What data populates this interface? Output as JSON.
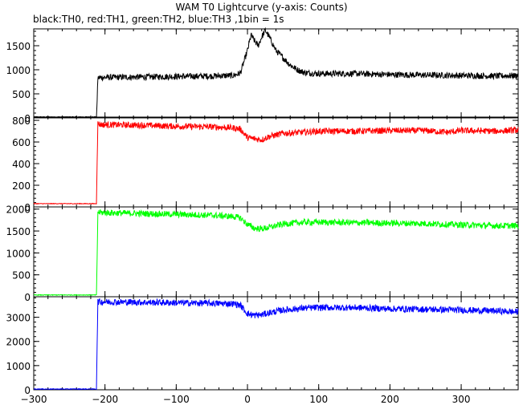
{
  "chart_data": {
    "type": "line",
    "title": "WAM T0 Lightcurve (y-axis: Counts)",
    "subtitle": "black:TH0, red:TH1, green:TH2, blue:TH3 ,1bin = 1s",
    "xlim": [
      -300,
      380
    ],
    "x_ticks": [
      -300,
      -200,
      -100,
      0,
      100,
      200,
      300
    ],
    "grid": false,
    "panels": [
      {
        "name": "TH0",
        "color": "#000000",
        "ylim": [
          0,
          1850
        ],
        "y_ticks": [
          0,
          500,
          1000,
          1500
        ],
        "series": {
          "x": [
            -300,
            -212,
            -211,
            -210,
            -205,
            -150,
            -100,
            -50,
            -20,
            -10,
            0,
            5,
            10,
            15,
            20,
            25,
            30,
            35,
            40,
            50,
            60,
            70,
            80,
            100,
            150,
            200,
            250,
            300,
            350,
            380
          ],
          "y": [
            20,
            20,
            350,
            830,
            840,
            850,
            860,
            870,
            880,
            930,
            1400,
            1720,
            1600,
            1500,
            1680,
            1820,
            1700,
            1550,
            1400,
            1250,
            1100,
            1000,
            940,
            920,
            920,
            900,
            890,
            880,
            870,
            880
          ]
        }
      },
      {
        "name": "TH1",
        "color": "#ff0000",
        "ylim": [
          0,
          830
        ],
        "y_ticks": [
          0,
          200,
          400,
          600,
          800
        ],
        "series": {
          "x": [
            -300,
            -212,
            -211,
            -210,
            -205,
            -150,
            -100,
            -50,
            -20,
            -10,
            0,
            10,
            20,
            30,
            50,
            80,
            100,
            150,
            200,
            250,
            280,
            300,
            350,
            380
          ],
          "y": [
            30,
            30,
            420,
            770,
            760,
            755,
            745,
            740,
            730,
            720,
            640,
            630,
            620,
            650,
            680,
            690,
            700,
            700,
            705,
            705,
            690,
            705,
            700,
            710
          ]
        }
      },
      {
        "name": "TH2",
        "color": "#00ff00",
        "ylim": [
          0,
          2050
        ],
        "y_ticks": [
          0,
          500,
          1000,
          1500,
          2000
        ],
        "series": {
          "x": [
            -300,
            -212,
            -211,
            -210,
            -205,
            -150,
            -100,
            -50,
            -20,
            -10,
            0,
            10,
            20,
            30,
            50,
            80,
            100,
            150,
            200,
            250,
            300,
            350,
            380
          ],
          "y": [
            40,
            40,
            900,
            1930,
            1920,
            1900,
            1880,
            1860,
            1830,
            1800,
            1650,
            1560,
            1550,
            1580,
            1660,
            1700,
            1700,
            1690,
            1680,
            1670,
            1640,
            1620,
            1620
          ]
        }
      },
      {
        "name": "TH3",
        "color": "#0000ff",
        "ylim": [
          0,
          3850
        ],
        "y_ticks": [
          0,
          1000,
          2000,
          3000
        ],
        "series": {
          "x": [
            -300,
            -212,
            -211,
            -210,
            -205,
            -150,
            -100,
            -50,
            -20,
            -10,
            0,
            10,
            20,
            30,
            50,
            80,
            100,
            150,
            200,
            250,
            300,
            350,
            380
          ],
          "y": [
            30,
            30,
            1900,
            3650,
            3640,
            3620,
            3600,
            3580,
            3560,
            3500,
            3150,
            3080,
            3100,
            3180,
            3300,
            3380,
            3400,
            3400,
            3350,
            3330,
            3300,
            3260,
            3220
          ]
        }
      }
    ]
  }
}
